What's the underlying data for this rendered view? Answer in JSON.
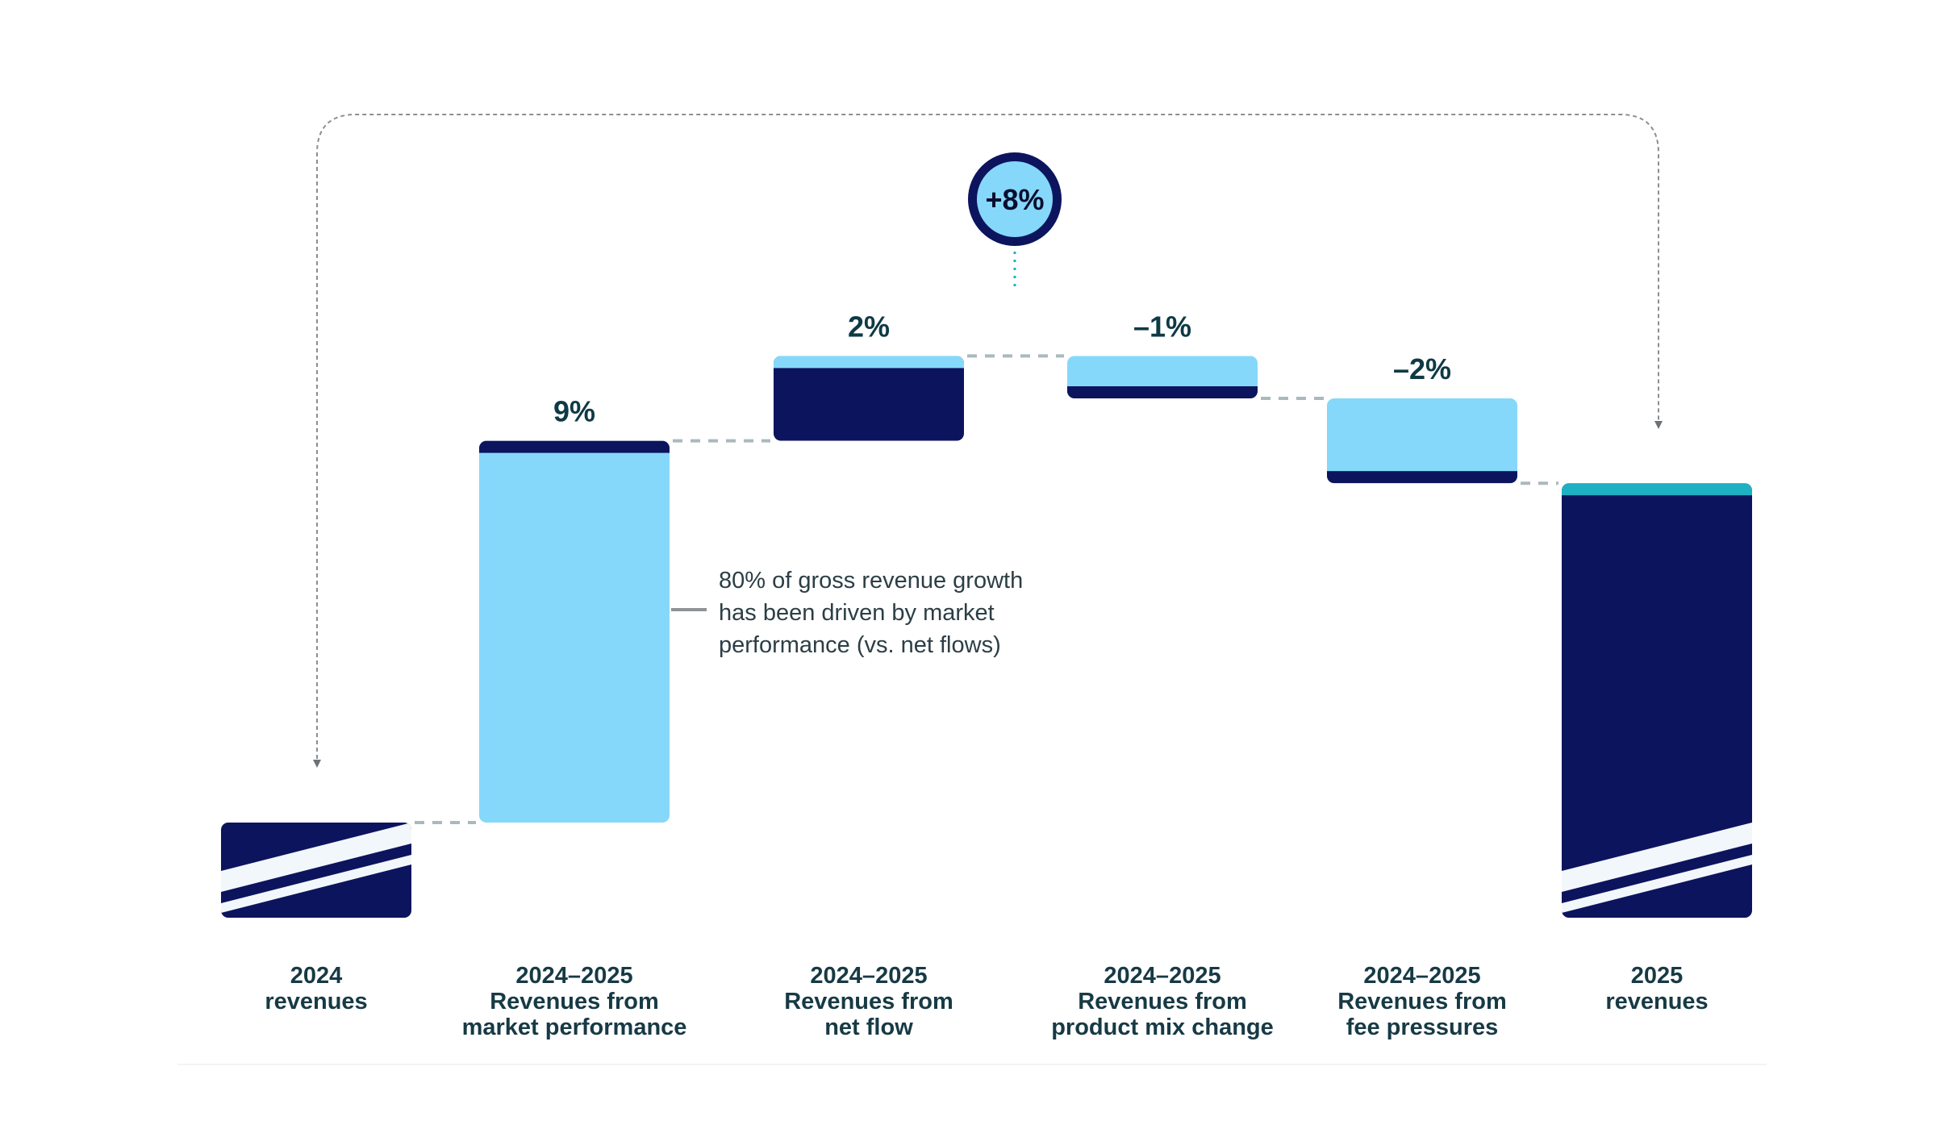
{
  "chart_data": {
    "type": "waterfall",
    "title": "",
    "xlabel": "",
    "ylabel": "",
    "categories": [
      [
        "2024",
        "revenues"
      ],
      [
        "2024–2025",
        "Revenues from",
        "market performance"
      ],
      [
        "2024–2025",
        "Revenues from",
        "net flow"
      ],
      [
        "2024–2025",
        "Revenues from",
        "product mix change"
      ],
      [
        "2024–2025",
        "Revenues from",
        "fee pressures"
      ],
      [
        "2025",
        "revenues"
      ]
    ],
    "values": [
      null,
      9,
      2,
      -1,
      -2,
      null
    ],
    "value_labels": [
      "",
      "9%",
      "2%",
      "–1%",
      "–2%",
      ""
    ],
    "total_change_label": "+8%",
    "annotation": [
      "80% of gross revenue growth",
      "has been driven by market",
      "performance (vs. net flows)"
    ],
    "axis_break_on_totals": true,
    "colors": {
      "dark": "#0d145e",
      "light": "#85d8fa",
      "teal": "#1fb0c4",
      "label": "#0f3a45",
      "connector": "#a9b9bd"
    }
  }
}
